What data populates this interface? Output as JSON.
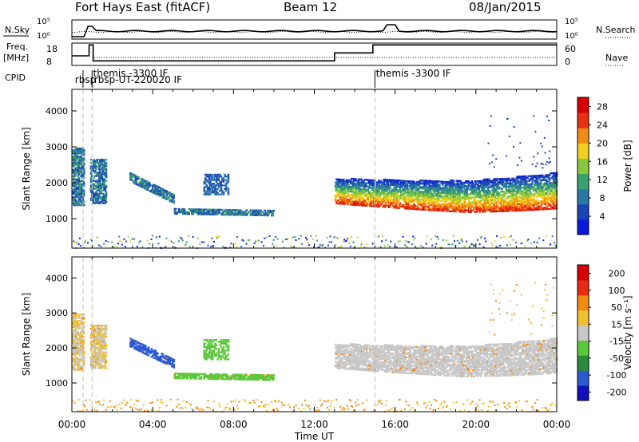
{
  "header": {
    "station": "Fort Hays East (fitACF)",
    "beam": "Beam 12",
    "date": "08/Jan/2015"
  },
  "summary": {
    "nsky_label": "N.Sky",
    "nsearch_label": "N.Search",
    "freq_label_line1": "Freq.",
    "freq_label_line2": "[MHz]",
    "nave_label": "Nave",
    "cpid_label": "CPID",
    "n_ticks_left": [
      "10^5",
      "10^0"
    ],
    "n_ticks_right": [
      "10^5",
      "10^0"
    ],
    "freq_ticks": [
      "18",
      "8"
    ],
    "nave_ticks": [
      "60",
      "0"
    ],
    "cpid_labels": [
      {
        "text": "rbsp",
        "t": 0.3
      },
      {
        "text": "rbsp-",
        "t": 0.55
      },
      {
        "text": "themis -3300 IF",
        "t": 1.0
      },
      {
        "text": "rbsp-UT-220020 IF",
        "t": 1.1
      },
      {
        "text": "themis -3300 IF",
        "t": 15.0
      }
    ],
    "freq_steps": [
      [
        0,
        12
      ],
      [
        0.85,
        12
      ],
      [
        0.85,
        17.5
      ],
      [
        1.05,
        17.5
      ],
      [
        1.05,
        9.5
      ],
      [
        13.0,
        9.5
      ],
      [
        13.0,
        13.5
      ],
      [
        14.9,
        13.5
      ],
      [
        14.9,
        17.5
      ],
      [
        24,
        17.5
      ]
    ]
  },
  "chart_data": [
    {
      "type": "heatmap",
      "panel": "power",
      "ylabel": "Slant Range [km]",
      "xlabel": "Time UT",
      "xlim_hours": [
        0,
        24
      ],
      "ylim_km": [
        180,
        4600
      ],
      "yticks": [
        1000,
        2000,
        3000,
        4000
      ],
      "xtick_labels": [
        "00:00",
        "04:00",
        "08:00",
        "12:00",
        "16:00",
        "20:00",
        "00:00"
      ],
      "colorbar": {
        "label": "Power [dB]",
        "ticks": [
          "4",
          "8",
          "12",
          "16",
          "20",
          "24",
          "28"
        ],
        "range": [
          0,
          30
        ],
        "colors": [
          "#0a1adc",
          "#1a44b8",
          "#2a78a4",
          "#3aa06e",
          "#88c83a",
          "#f0d020",
          "#f08a10",
          "#e83010",
          "#d80000"
        ]
      },
      "features": [
        {
          "desc": "early echoes",
          "t_start": 0.0,
          "t_end": 0.6,
          "r_low": 1400,
          "r_high": 3000,
          "power": 14
        },
        {
          "desc": "early echoes 2",
          "t_start": 0.9,
          "t_end": 1.7,
          "r_low": 1500,
          "r_high": 2800,
          "power": 12
        },
        {
          "desc": "descending band",
          "t_start": 2.8,
          "t_end": 5.0,
          "r_low": 1700,
          "r_high": 2300,
          "power": 8
        },
        {
          "desc": "mid band",
          "t_start": 5.0,
          "t_end": 10.0,
          "r_low": 1100,
          "r_high": 1400,
          "power": 10
        },
        {
          "desc": "patch",
          "t_start": 6.5,
          "t_end": 7.7,
          "r_low": 1700,
          "r_high": 2300,
          "power": 6
        },
        {
          "desc": "late band",
          "t_start": 13.0,
          "t_end": 24.0,
          "r_low": 1150,
          "r_high": 2300,
          "power": 22
        }
      ]
    },
    {
      "type": "heatmap",
      "panel": "velocity",
      "ylabel": "Slant Range [km]",
      "xlabel": "Time UT",
      "xlim_hours": [
        0,
        24
      ],
      "ylim_km": [
        180,
        4600
      ],
      "yticks": [
        1000,
        2000,
        3000,
        4000
      ],
      "xtick_labels": [
        "00:00",
        "04:00",
        "08:00",
        "12:00",
        "16:00",
        "20:00",
        "00:00"
      ],
      "colorbar": {
        "label": "Velocity [m s^-1]",
        "ticks": [
          "200",
          "100",
          "50",
          "15",
          "-15",
          "-50",
          "-100",
          "-200"
        ],
        "colors": [
          "#1010c0",
          "#2c5ad0",
          "#2a8c3a",
          "#5ac83a",
          "#c8c8c8",
          "#f0c030",
          "#f08a10",
          "#e82a10",
          "#d80000"
        ]
      }
    }
  ]
}
